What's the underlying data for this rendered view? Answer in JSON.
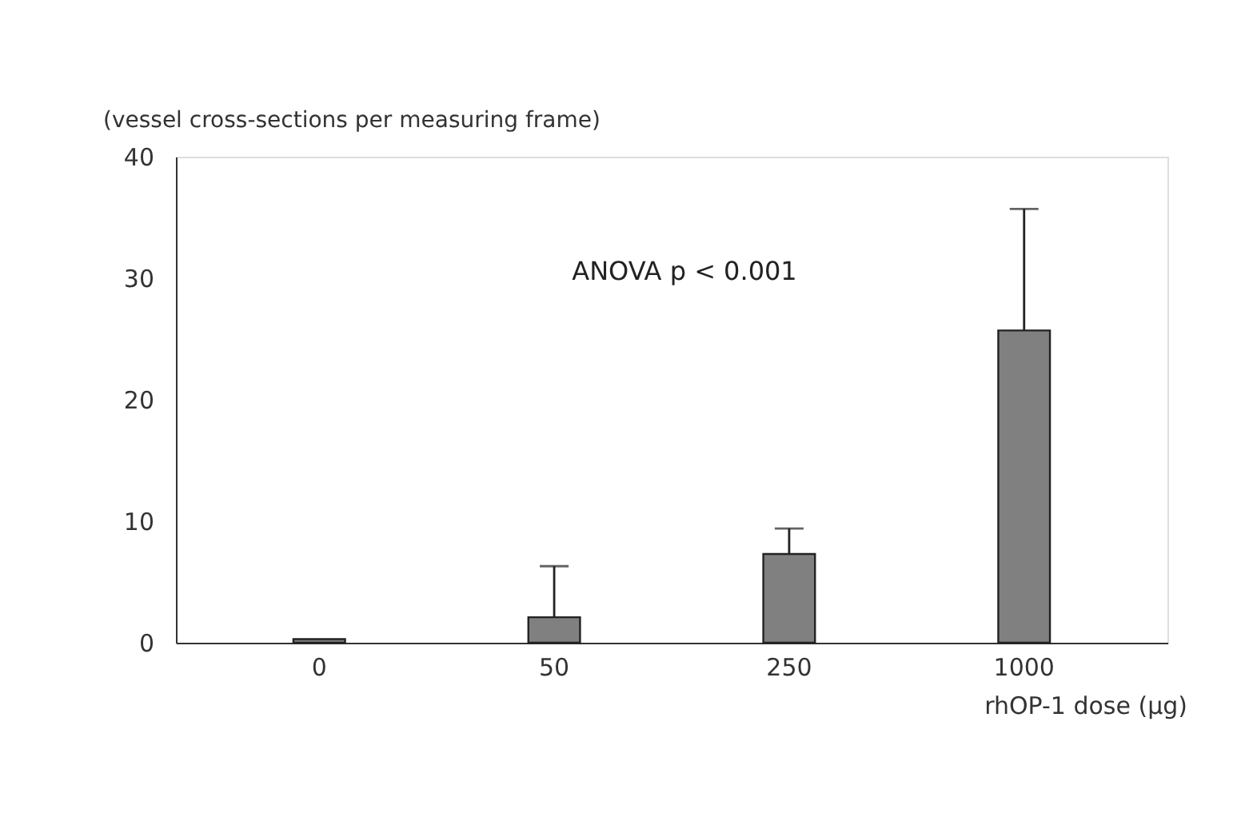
{
  "chart_data": {
    "type": "bar",
    "xlabel": "rhOP-1 dose (µg)",
    "ylabel": "(vessel cross-sections per measuring frame)",
    "categories": [
      "0",
      "50",
      "250",
      "1000"
    ],
    "values": [
      0.3,
      2.1,
      7.3,
      25.7
    ],
    "errors": [
      null,
      [
        2.1,
        6.3
      ],
      [
        7.3,
        9.4
      ],
      [
        25.7,
        35.7
      ]
    ],
    "color": "#808080",
    "ylim": [
      0,
      40
    ],
    "yticks": [
      0,
      10,
      20,
      30,
      40
    ],
    "grid": false,
    "annotations": [
      "ANOVA p < 0.001"
    ]
  }
}
